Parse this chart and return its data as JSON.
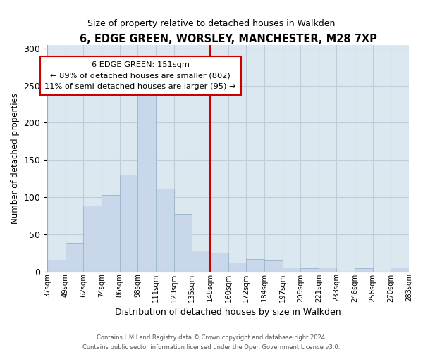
{
  "title": "6, EDGE GREEN, WORSLEY, MANCHESTER, M28 7XP",
  "subtitle": "Size of property relative to detached houses in Walkden",
  "xlabel": "Distribution of detached houses by size in Walkden",
  "ylabel": "Number of detached properties",
  "footnote1": "Contains HM Land Registry data © Crown copyright and database right 2024.",
  "footnote2": "Contains public sector information licensed under the Open Government Licence v3.0.",
  "bar_labels": [
    "37sqm",
    "49sqm",
    "62sqm",
    "74sqm",
    "86sqm",
    "98sqm",
    "111sqm",
    "123sqm",
    "135sqm",
    "148sqm",
    "160sqm",
    "172sqm",
    "184sqm",
    "197sqm",
    "209sqm",
    "221sqm",
    "233sqm",
    "246sqm",
    "258sqm",
    "270sqm",
    "283sqm"
  ],
  "bar_values": [
    16,
    38,
    89,
    103,
    130,
    238,
    111,
    77,
    28,
    25,
    12,
    17,
    15,
    5,
    4,
    5,
    0,
    4,
    0,
    5
  ],
  "bar_color": "#c8d8ea",
  "bar_edge_color": "#a0b8d0",
  "bg_color": "#dce8f0",
  "vline_color": "#cc0000",
  "vline_position": 9,
  "annotation_title": "6 EDGE GREEN: 151sqm",
  "annotation_line1": "← 89% of detached houses are smaller (802)",
  "annotation_line2": "11% of semi-detached houses are larger (95) →",
  "annotation_box_color": "white",
  "annotation_box_edge": "#cc0000",
  "ylim": [
    0,
    305
  ],
  "yticks": [
    0,
    50,
    100,
    150,
    200,
    250,
    300
  ],
  "grid_color": "#c0ccd8"
}
